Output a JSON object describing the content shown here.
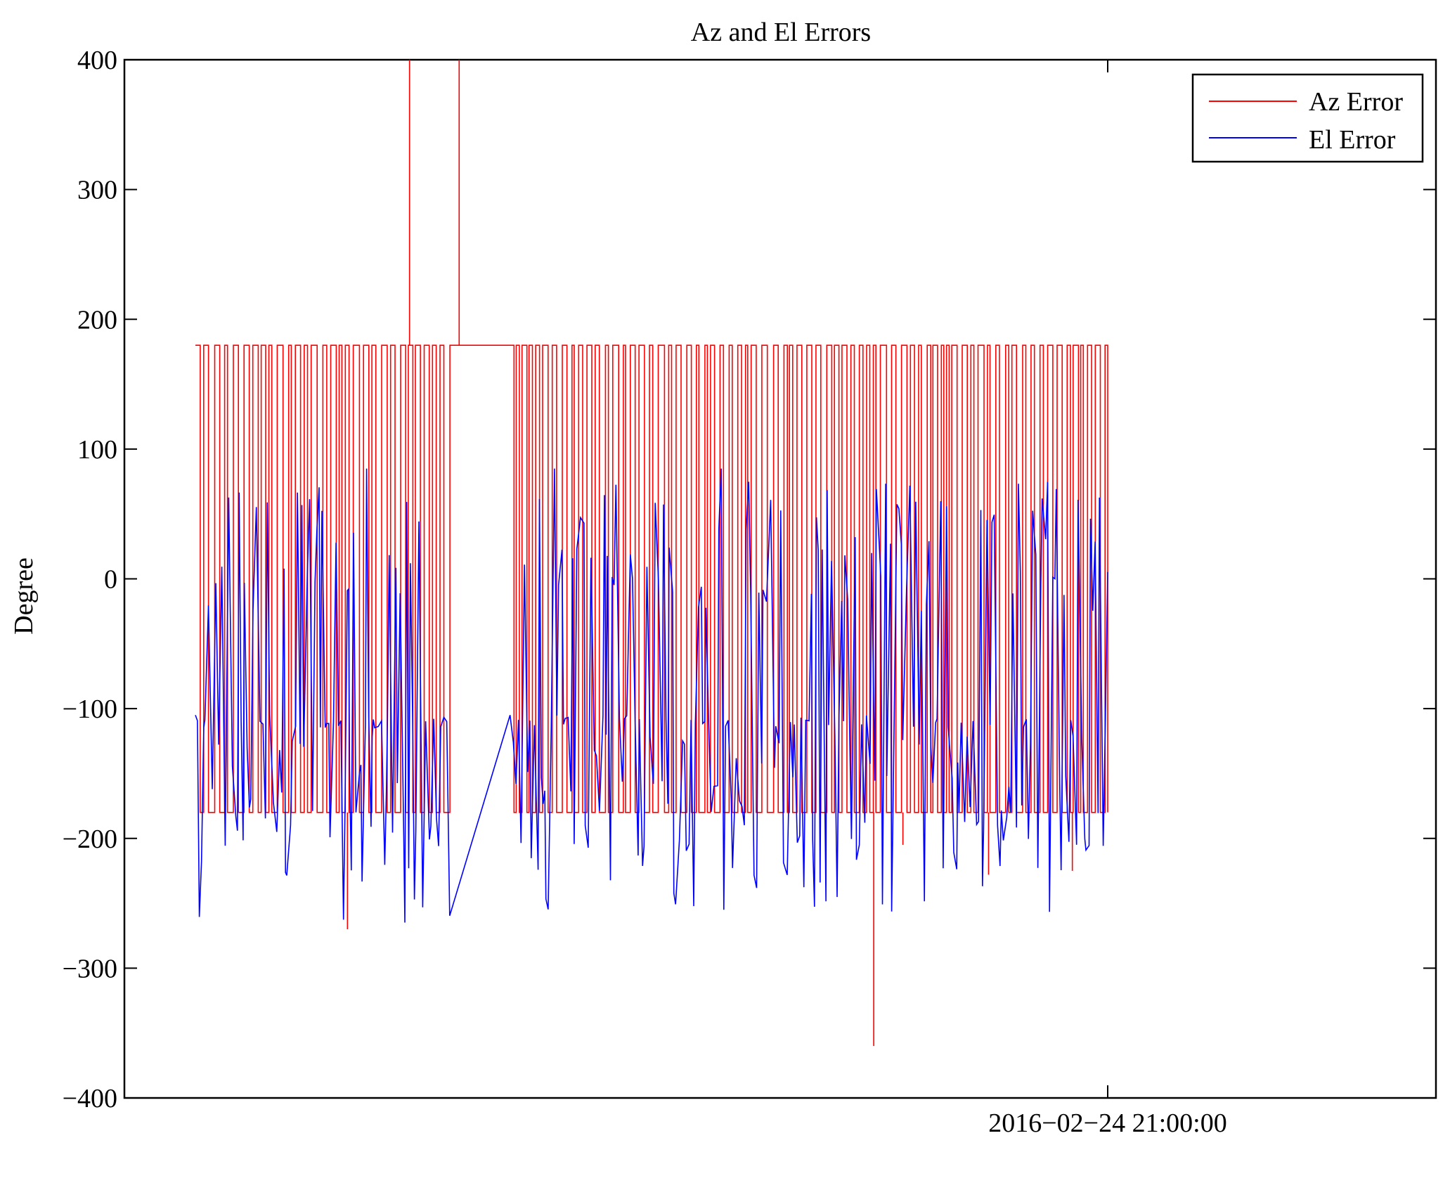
{
  "chart_data": {
    "type": "line",
    "title": "Az and El Errors",
    "xlabel": "",
    "ylabel": "Degree",
    "ylim": [
      -400,
      400
    ],
    "yticks": [
      400,
      300,
      200,
      100,
      0,
      -100,
      -200,
      -300,
      -400
    ],
    "ytick_labels": [
      "400",
      "300",
      "200",
      "100",
      "0",
      "−100",
      "−200",
      "−300",
      "−400"
    ],
    "xtick_labels": [
      "2016−02−24 21:00:00"
    ],
    "grid": false,
    "legend_position": "top-right",
    "series": [
      {
        "name": "Az Error",
        "color": "#ff0000",
        "baseline": [
          180,
          -180
        ],
        "spikes": [
          {
            "x_frac": 0.1725,
            "y": 400
          },
          {
            "x_frac": 0.2125,
            "y": 400
          },
          {
            "x_frac": 0.1225,
            "y": -270
          },
          {
            "x_frac": 0.5465,
            "y": -360
          },
          {
            "x_frac": 0.57,
            "y": -205
          },
          {
            "x_frac": 0.639,
            "y": -228
          },
          {
            "x_frac": 0.7065,
            "y": -225
          }
        ]
      },
      {
        "name": "El Error",
        "color": "#0000ff",
        "baseline": [
          75,
          -105
        ],
        "min_approx": -265,
        "max_approx": 85
      }
    ],
    "data_extent_x_frac": [
      0.0,
      0.735
    ],
    "flat_segment_x_frac": [
      0.2025,
      0.2535
    ]
  },
  "legend": {
    "items": [
      {
        "label": "Az Error",
        "color": "#ff0000"
      },
      {
        "label": "El Error",
        "color": "#0000ff"
      }
    ]
  }
}
